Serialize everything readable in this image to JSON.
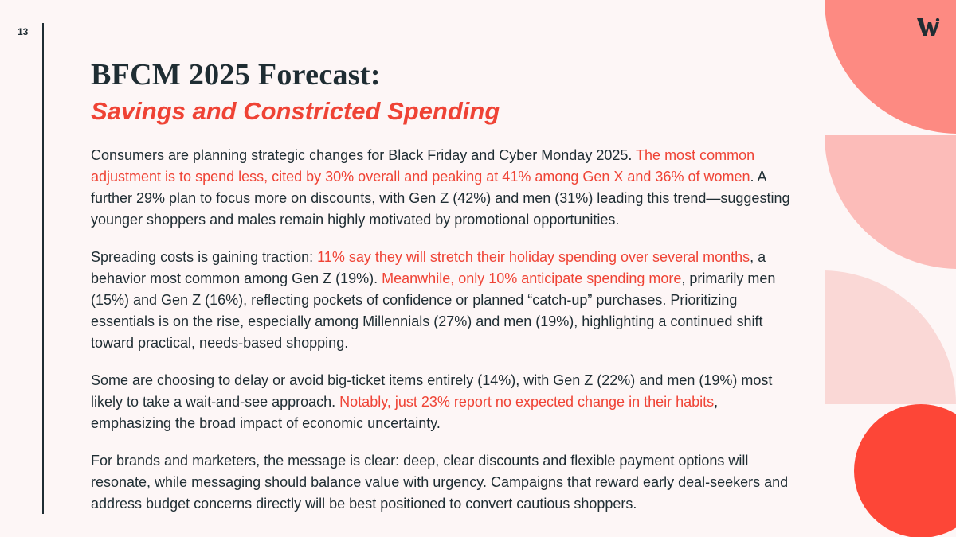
{
  "page_number": "13",
  "title": "BFCM 2025 Forecast:",
  "subtitle": "Savings and Constricted Spending",
  "paragraphs": {
    "p1": {
      "a": "Consumers are planning strategic changes for Black Friday and Cyber Monday 2025. ",
      "b": "The most common adjustment is to spend less, cited by 30% overall and peaking at 41% among Gen X and 36% of women",
      "c": ". A further 29% plan to focus more on discounts, with Gen Z (42%) and men (31%) leading this trend—suggesting younger shoppers and males remain highly motivated by promotional opportunities."
    },
    "p2": {
      "a": "Spreading costs is gaining traction: ",
      "b": "11% say they will stretch their holiday spending over several months",
      "c": ", a behavior most common among Gen Z (19%). ",
      "d": "Meanwhile, only 10% anticipate spending more",
      "e": ", primarily men (15%) and Gen Z (16%), reflecting pockets of confidence or planned “catch-up” purchases. Prioritizing essentials is on the rise, especially among Millennials (27%) and men (19%), highlighting a continued shift toward practical, needs-based shopping."
    },
    "p3": {
      "a": "Some are choosing to delay or avoid big-ticket items entirely (14%), with Gen Z (22%) and men (19%) most likely to take a wait-and-see approach. ",
      "b": "Notably, just 23% report no expected change in their habits",
      "c": ", emphasizing the broad impact of economic uncertainty."
    },
    "p4": {
      "a": "For brands and marketers, the message is clear: deep, clear discounts and flexible payment options will resonate, while messaging should balance value with urgency. Campaigns that reward early deal-seekers and address budget concerns directly will be best positioned to convert cautious shoppers."
    }
  },
  "colors": {
    "accent": "#ef4335",
    "text": "#1f2d33",
    "background": "#fdf6f6",
    "shape_1": "#fd8a82",
    "shape_2": "#fcbcb9",
    "shape_3": "#fad8d6",
    "circle": "#fd4637"
  },
  "icons": {
    "logo": "w-logo-icon"
  }
}
